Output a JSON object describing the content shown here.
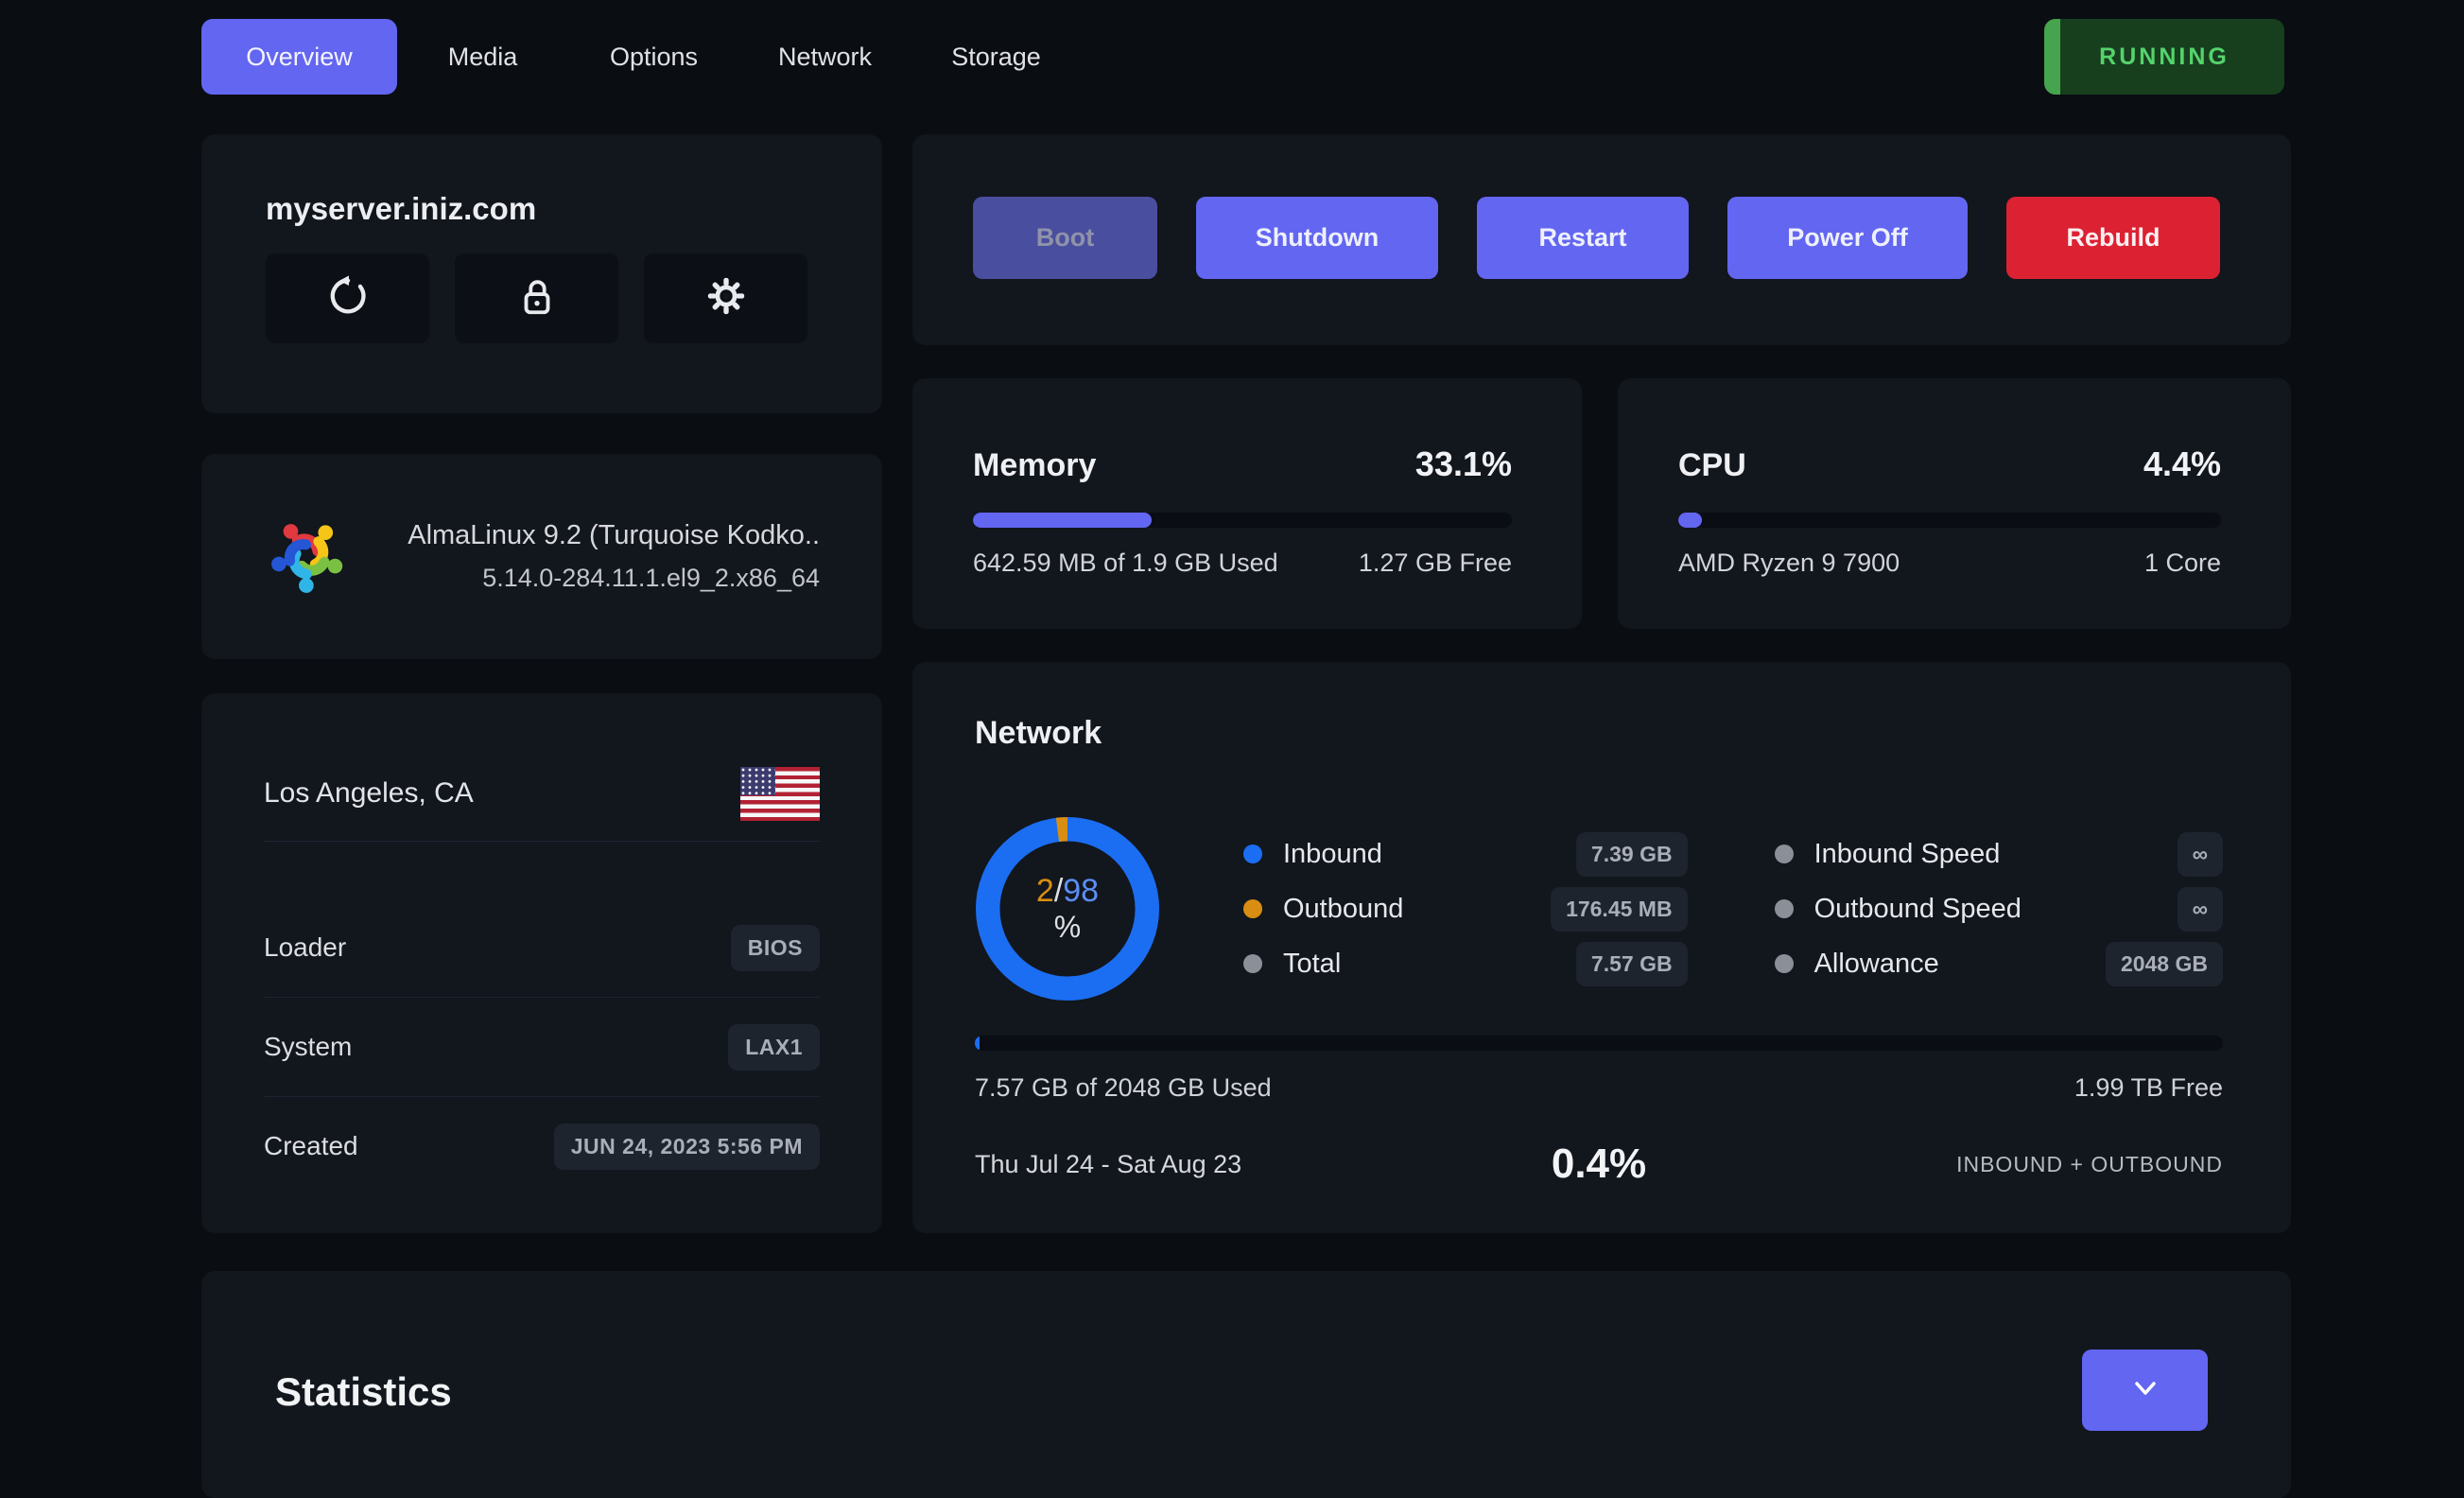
{
  "nav": {
    "tabs": [
      {
        "label": "Overview",
        "active": true
      },
      {
        "label": "Media",
        "active": false
      },
      {
        "label": "Options",
        "active": false
      },
      {
        "label": "Network",
        "active": false
      },
      {
        "label": "Storage",
        "active": false
      }
    ],
    "status": "RUNNING"
  },
  "server": {
    "hostname": "myserver.iniz.com",
    "quick_action_icons": [
      "restart-icon",
      "unlock-icon",
      "gear-icon"
    ]
  },
  "os": {
    "name": "AlmaLinux 9.2 (Turquoise Kodko..",
    "kernel": "5.14.0-284.11.1.el9_2.x86_64",
    "logo": "almalinux-logo"
  },
  "info": {
    "location": "Los Angeles, CA",
    "flag": "us-flag",
    "rows": [
      {
        "label": "Loader",
        "value": "BIOS"
      },
      {
        "label": "System",
        "value": "LAX1"
      },
      {
        "label": "Created",
        "value": "JUN 24, 2023 5:56 PM"
      }
    ]
  },
  "actions": {
    "boot": "Boot",
    "shutdown": "Shutdown",
    "restart": "Restart",
    "power_off": "Power Off",
    "rebuild": "Rebuild"
  },
  "memory": {
    "title": "Memory",
    "percent": "33.1%",
    "percent_value": 33.1,
    "used": "642.59 MB of 1.9 GB Used",
    "free": "1.27 GB Free"
  },
  "cpu": {
    "title": "CPU",
    "percent": "4.4%",
    "percent_value": 4.4,
    "model": "AMD Ryzen 9 7900",
    "cores": "1 Core"
  },
  "network": {
    "title": "Network",
    "donut": {
      "outbound_pct": 2,
      "inbound_pct": 98,
      "outbound_label": "2",
      "separator": "/",
      "inbound_label": "98",
      "unit": "%"
    },
    "legend": [
      {
        "label": "Inbound",
        "value": "7.39 GB",
        "color": "#1b6ef2"
      },
      {
        "label": "Outbound",
        "value": "176.45 MB",
        "color": "#d78e12"
      },
      {
        "label": "Total",
        "value": "7.57 GB",
        "color": "#8a8f98"
      }
    ],
    "limits": [
      {
        "label": "Inbound Speed",
        "value": "∞"
      },
      {
        "label": "Outbound Speed",
        "value": "∞"
      },
      {
        "label": "Allowance",
        "value": "2048 GB"
      }
    ],
    "usage_percent_value": 0.4,
    "used": "7.57 GB of 2048 GB Used",
    "free": "1.99 TB Free",
    "period": "Thu Jul 24 - Sat Aug 23",
    "period_percent": "0.4%",
    "period_kind": "INBOUND + OUTBOUND"
  },
  "statistics": {
    "title": "Statistics",
    "toggle_icon": "chevron-down-icon"
  },
  "colors": {
    "accent": "#6366f1",
    "danger": "#dc2132",
    "running_green": "#55d36c",
    "donut_blue": "#1b6ef2",
    "donut_orange": "#d78e12",
    "page_bg": "#0a0d12",
    "card_bg": "#12161d"
  }
}
